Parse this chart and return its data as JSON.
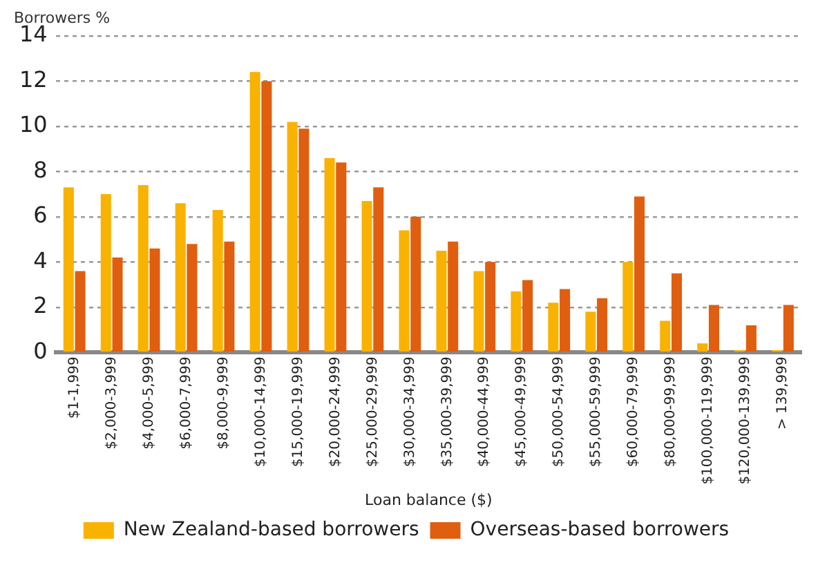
{
  "chart_data": {
    "type": "bar",
    "xlabel": "Loan balance ($)",
    "ylabel": "Borrowers %",
    "categories": [
      "$1-1,999",
      "$2,000-3,999",
      "$4,000-5,999",
      "$6,000-7,999",
      "$8,000-9,999",
      "$10,000-14,999",
      "$15,000-19,999",
      "$20,000-24,999",
      "$25,000-29,999",
      "$30,000-34,999",
      "$35,000-39,999",
      "$40,000-44,999",
      "$45,000-49,999",
      "$50,000-54,999",
      "$55,000-59,999",
      "$60,000-79,999",
      "$80,000-99,999",
      "$100,000-119,999",
      "$120,000-139,999",
      "> 139,999"
    ],
    "series": [
      {
        "name": "New Zealand-based borrowers",
        "color": "#f9b200",
        "values": [
          7.3,
          7.0,
          7.4,
          6.6,
          6.3,
          12.4,
          10.2,
          8.6,
          6.7,
          5.4,
          4.5,
          3.6,
          2.7,
          2.2,
          1.8,
          4.0,
          1.4,
          0.4,
          0.1,
          0.1
        ]
      },
      {
        "name": "Overseas-based borrowers",
        "color": "#e05e10",
        "values": [
          3.6,
          4.2,
          4.6,
          4.8,
          4.9,
          12.0,
          9.9,
          8.4,
          7.3,
          6.0,
          4.9,
          4.0,
          3.2,
          2.8,
          2.4,
          6.9,
          3.5,
          2.1,
          1.2,
          2.1
        ]
      }
    ],
    "ylim": [
      0,
      14
    ],
    "yticks": [
      0,
      2,
      4,
      6,
      8,
      10,
      12,
      14
    ],
    "grid": "y",
    "legend": "bottom"
  }
}
